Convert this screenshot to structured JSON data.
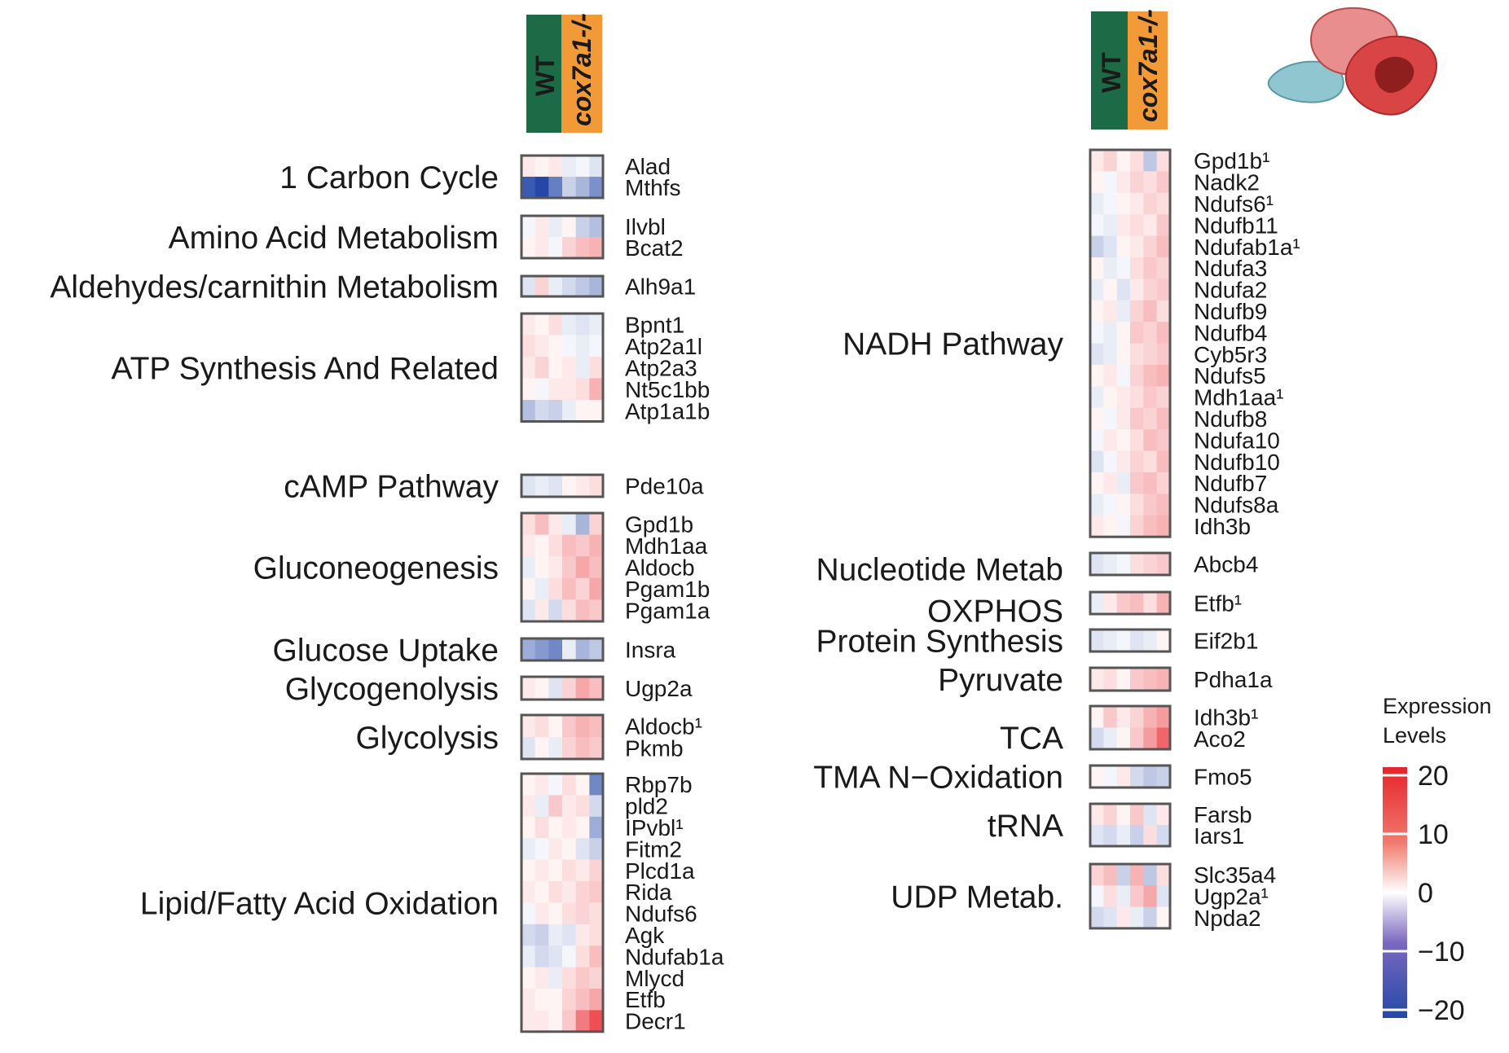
{
  "figure": {
    "column_headers": [
      "WT",
      "cox7a1-/-"
    ],
    "header_colors": {
      "WT": "#1d6b46",
      "cox7a1-/-": "#f39a38"
    },
    "icon": "zebrafish-heart-illustration"
  },
  "legend": {
    "title_line1": "Expression",
    "title_line2": "Levels",
    "ticks": [
      "20",
      "10",
      "0",
      "−10",
      "−20"
    ],
    "tick_values": [
      20,
      10,
      0,
      -10,
      -20
    ],
    "colors": {
      "high": "#e8232a",
      "mid": "#ffffff",
      "low": "#2548a8"
    }
  },
  "chart_data": {
    "type": "heatmap",
    "scale": {
      "min": -20,
      "max": 20,
      "low_color": "#2548a8",
      "mid_color": "#ffffff",
      "high_color": "#e8232a"
    },
    "columns": [
      "WT",
      "WT",
      "WT",
      "cox7a1-/-",
      "cox7a1-/-",
      "cox7a1-/-"
    ],
    "panels": [
      {
        "name": "left",
        "groups": [
          {
            "pathway": "1 Carbon Cycle",
            "genes": [
              "Alad",
              "Mthfs"
            ],
            "values": [
              [
                2,
                1,
                2,
                -2,
                -1,
                -3
              ],
              [
                -18,
                -20,
                -14,
                -5,
                -8,
                -12
              ]
            ]
          },
          {
            "pathway": "Amino Acid Metabolism",
            "genes": [
              "Ilvbl",
              "Bcat2"
            ],
            "values": [
              [
                -1,
                2,
                -2,
                1,
                -5,
                -7
              ],
              [
                1,
                2,
                -1,
                4,
                6,
                7
              ]
            ]
          },
          {
            "pathway": "Aldehydes/carnithin Metabolism",
            "genes": [
              "Alh9a1"
            ],
            "values": [
              [
                -3,
                4,
                -2,
                -4,
                -6,
                -8
              ]
            ]
          },
          {
            "pathway": "ATP Synthesis And Related",
            "genes": [
              "Bpnt1",
              "Atp2a1l",
              "Atp2a3",
              "Nt5c1bb",
              "Atp1a1b"
            ],
            "values": [
              [
                2,
                1,
                3,
                -2,
                -3,
                -2
              ],
              [
                3,
                2,
                1,
                -1,
                -2,
                -1
              ],
              [
                2,
                4,
                1,
                2,
                -2,
                3
              ],
              [
                1,
                -1,
                2,
                2,
                3,
                7
              ],
              [
                -7,
                -4,
                -5,
                -2,
                1,
                1
              ]
            ]
          },
          {
            "pathway": "cAMP Pathway",
            "genes": [
              "Pde10a"
            ],
            "values": [
              [
                -3,
                -2,
                -3,
                1,
                2,
                3
              ]
            ]
          },
          {
            "pathway": "Gluconeogenesis",
            "genes": [
              "Gpd1b",
              "Mdh1aa",
              "Aldocb",
              "Pgam1b",
              "Pgam1a"
            ],
            "values": [
              [
                3,
                6,
                2,
                -2,
                -8,
                4
              ],
              [
                2,
                1,
                3,
                6,
                5,
                7
              ],
              [
                -2,
                1,
                2,
                5,
                8,
                6
              ],
              [
                1,
                -2,
                3,
                6,
                4,
                8
              ],
              [
                -3,
                2,
                -4,
                3,
                6,
                5
              ]
            ]
          },
          {
            "pathway": "Glucose Uptake",
            "genes": [
              "Insra"
            ],
            "values": [
              [
                -9,
                -11,
                -13,
                -2,
                -8,
                -6
              ]
            ]
          },
          {
            "pathway": "Glycogenolysis",
            "genes": [
              "Ugp2a"
            ],
            "values": [
              [
                2,
                1,
                -3,
                4,
                8,
                6
              ]
            ]
          },
          {
            "pathway": "Glycolysis",
            "genes": [
              "Aldocb¹",
              "Pkmb"
            ],
            "values": [
              [
                2,
                3,
                1,
                5,
                7,
                6
              ],
              [
                -3,
                1,
                -2,
                4,
                6,
                5
              ]
            ]
          },
          {
            "pathway": "Lipid/Fatty Acid Oxidation",
            "genes": [
              "Rbp7b",
              "pld2",
              "IPvbl¹",
              "Fitm2",
              "Plcd1a",
              "Rida",
              "Ndufs6",
              "Agk",
              "Ndufab1a",
              "Mlycd",
              "Etfb",
              "Decr1"
            ],
            "values": [
              [
                1,
                2,
                -1,
                3,
                1,
                -13
              ],
              [
                2,
                -2,
                5,
                2,
                3,
                -4
              ],
              [
                1,
                3,
                1,
                2,
                1,
                -9
              ],
              [
                -2,
                -1,
                2,
                1,
                -3,
                -5
              ],
              [
                1,
                2,
                1,
                3,
                2,
                4
              ],
              [
                2,
                1,
                3,
                2,
                4,
                5
              ],
              [
                -1,
                2,
                1,
                3,
                4,
                3
              ],
              [
                -4,
                -5,
                -2,
                -3,
                2,
                3
              ],
              [
                -2,
                -4,
                -3,
                -1,
                3,
                6
              ],
              [
                1,
                2,
                -2,
                3,
                5,
                4
              ],
              [
                2,
                1,
                1,
                4,
                6,
                8
              ],
              [
                2,
                2,
                1,
                5,
                12,
                16
              ]
            ]
          }
        ]
      },
      {
        "name": "right",
        "groups": [
          {
            "pathway": "NADH Pathway",
            "genes": [
              "Gpd1b¹",
              "Nadk2",
              "Ndufs6¹",
              "Ndufb11",
              "Ndufab1a¹",
              "Ndufa3",
              "Ndufa2",
              "Ndufb9",
              "Ndufb4",
              "Cyb5r3",
              "Ndufs5",
              "Mdh1aa¹",
              "Ndufb8",
              "Ndufa10",
              "Ndufb10",
              "Ndufb7",
              "Ndufs8a",
              "Idh3b"
            ],
            "values": [
              [
                2,
                4,
                1,
                3,
                -6,
                3
              ],
              [
                1,
                -1,
                2,
                4,
                3,
                5
              ],
              [
                -2,
                -1,
                1,
                2,
                4,
                3
              ],
              [
                -1,
                -2,
                2,
                3,
                2,
                5
              ],
              [
                -5,
                -3,
                1,
                2,
                4,
                6
              ],
              [
                1,
                -2,
                -1,
                3,
                5,
                4
              ],
              [
                -2,
                1,
                -3,
                2,
                4,
                5
              ],
              [
                1,
                2,
                -2,
                4,
                6,
                3
              ],
              [
                -1,
                -2,
                1,
                5,
                4,
                6
              ],
              [
                -3,
                -2,
                1,
                3,
                4,
                5
              ],
              [
                1,
                2,
                -1,
                4,
                6,
                7
              ],
              [
                -2,
                1,
                2,
                3,
                5,
                4
              ],
              [
                1,
                -1,
                2,
                5,
                4,
                6
              ],
              [
                -1,
                2,
                1,
                3,
                6,
                5
              ],
              [
                -3,
                -1,
                2,
                4,
                3,
                6
              ],
              [
                1,
                2,
                -2,
                5,
                6,
                4
              ],
              [
                -2,
                -1,
                1,
                3,
                5,
                6
              ],
              [
                2,
                1,
                -1,
                4,
                6,
                7
              ]
            ]
          },
          {
            "pathway": "Nucleotide Metab",
            "genes": [
              "Abcb4"
            ],
            "values": [
              [
                -3,
                -2,
                -1,
                3,
                4,
                5
              ]
            ]
          },
          {
            "pathway": "OXPHOS",
            "genes": [
              "Etfb¹"
            ],
            "values": [
              [
                -2,
                2,
                5,
                6,
                3,
                7
              ]
            ]
          },
          {
            "pathway": "Protein Synthesis",
            "genes": [
              "Eif2b1"
            ],
            "values": [
              [
                -3,
                -2,
                -1,
                -3,
                -2,
                1
              ]
            ]
          },
          {
            "pathway": "Pyruvate",
            "genes": [
              "Pdha1a"
            ],
            "values": [
              [
                2,
                3,
                1,
                5,
                6,
                7
              ]
            ]
          },
          {
            "pathway": "TCA",
            "genes": [
              "Idh3b¹",
              "Aco2"
            ],
            "values": [
              [
                1,
                5,
                2,
                4,
                7,
                9
              ],
              [
                -4,
                -2,
                1,
                5,
                9,
                14
              ]
            ]
          },
          {
            "pathway": "TMA N−Oxidation",
            "genes": [
              "Fmo5"
            ],
            "values": [
              [
                1,
                -1,
                2,
                -4,
                -6,
                -5
              ]
            ]
          },
          {
            "pathway": "tRNA",
            "genes": [
              "Farsb",
              "Iars1"
            ],
            "values": [
              [
                2,
                4,
                1,
                5,
                -3,
                2
              ],
              [
                -3,
                -4,
                -2,
                -5,
                3,
                -4
              ]
            ]
          },
          {
            "pathway": "UDP Metab.",
            "genes": [
              "Slc35a4",
              "Ugp2a¹",
              "Npda2"
            ],
            "values": [
              [
                4,
                6,
                -5,
                7,
                -6,
                3
              ],
              [
                -1,
                3,
                -2,
                5,
                8,
                -3
              ],
              [
                -4,
                -3,
                2,
                -2,
                -5,
                1
              ]
            ]
          }
        ]
      }
    ]
  }
}
